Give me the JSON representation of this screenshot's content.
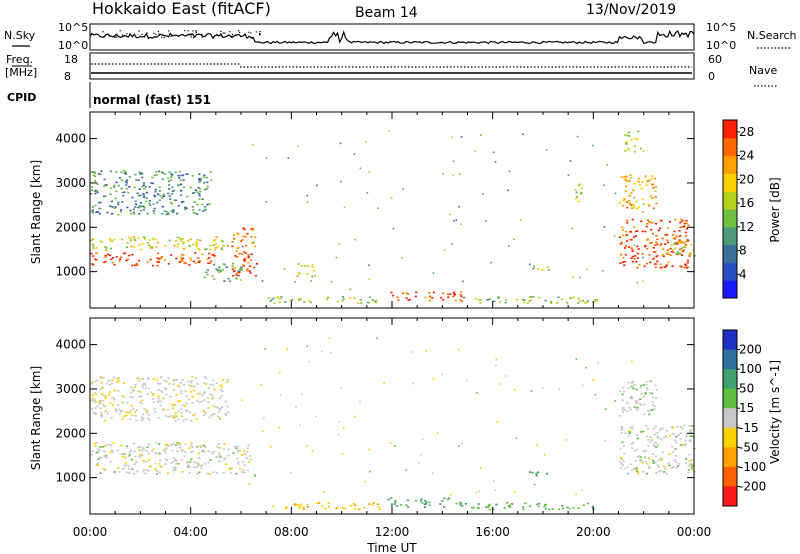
{
  "header": {
    "radar_title": "Hokkaido East (fitACF)",
    "beam": "Beam 14",
    "date": "13/Nov/2019"
  },
  "panels": {
    "nsky_label": "N.Sky",
    "nsky_ticks": [
      "10^5",
      "10^0"
    ],
    "nsearch_label": "N.Search",
    "freq_label_1": "Freq.",
    "freq_label_2": "[MHz]",
    "freq_ticks": [
      "18",
      "8"
    ],
    "nave_label": "Nave",
    "nave_ticks": [
      "60",
      "0"
    ],
    "cpid_label": "CPID",
    "cpid_value": "normal (fast) 151"
  },
  "chart_data": [
    {
      "type": "heatmap",
      "name_printed": "Power",
      "xlabel": "Time UT",
      "ylabel": "Slant Range [km]",
      "x_ticks": [
        "00:00",
        "04:00",
        "08:00",
        "12:00",
        "16:00",
        "20:00",
        "00:00"
      ],
      "xlim_hours": [
        0,
        24
      ],
      "y_ticks": [
        1000,
        2000,
        3000,
        4000
      ],
      "ylim": [
        180,
        4600
      ],
      "colorbar": {
        "label": "Power [dB]",
        "ticks": [
          4,
          8,
          12,
          16,
          20,
          24,
          28
        ],
        "range": [
          0,
          30
        ],
        "colors": [
          "#1a1aff",
          "#2a4fc0",
          "#3a6f98",
          "#4f9a7a",
          "#6fc040",
          "#b8d020",
          "#ffd000",
          "#ffa000",
          "#ff6a00",
          "#ff2000"
        ]
      },
      "regions": [
        {
          "t": [
            0.0,
            4.8
          ],
          "r": [
            2300,
            3300
          ],
          "level": 10
        },
        {
          "t": [
            0.0,
            5.5
          ],
          "r": [
            1500,
            1800
          ],
          "level": 18
        },
        {
          "t": [
            0.0,
            5.0
          ],
          "r": [
            1150,
            1450
          ],
          "level": 27
        },
        {
          "t": [
            5.6,
            6.6
          ],
          "r": [
            900,
            2000
          ],
          "level": 26
        },
        {
          "t": [
            4.5,
            6.0
          ],
          "r": [
            800,
            1200
          ],
          "level": 12
        },
        {
          "t": [
            8.2,
            8.9
          ],
          "r": [
            900,
            1200
          ],
          "level": 20
        },
        {
          "t": [
            7.0,
            11.5
          ],
          "r": [
            300,
            450
          ],
          "level": 14
        },
        {
          "t": [
            11.8,
            14.8
          ],
          "r": [
            350,
            560
          ],
          "level": 27
        },
        {
          "t": [
            14.8,
            20.2
          ],
          "r": [
            300,
            450
          ],
          "level": 14
        },
        {
          "t": [
            17.2,
            18.3
          ],
          "r": [
            1050,
            1150
          ],
          "level": 15
        },
        {
          "t": [
            21.0,
            23.8
          ],
          "r": [
            1100,
            2200
          ],
          "level": 27
        },
        {
          "t": [
            21.0,
            22.5
          ],
          "r": [
            2400,
            3200
          ],
          "level": 22
        },
        {
          "t": [
            22.8,
            24.0
          ],
          "r": [
            1300,
            1700
          ],
          "level": 18
        },
        {
          "t": [
            21.2,
            21.8
          ],
          "r": [
            3700,
            4200
          ],
          "level": 16
        },
        {
          "t": [
            19.2,
            19.6
          ],
          "r": [
            2500,
            3000
          ],
          "level": 16
        }
      ]
    },
    {
      "type": "heatmap",
      "name_printed": "Velocity",
      "xlabel": "Time UT",
      "ylabel": "Slant Range [km]",
      "x_ticks": [
        "00:00",
        "04:00",
        "08:00",
        "12:00",
        "16:00",
        "20:00",
        "00:00"
      ],
      "xlim_hours": [
        0,
        24
      ],
      "y_ticks": [
        1000,
        2000,
        3000,
        4000
      ],
      "ylim": [
        180,
        4600
      ],
      "colorbar": {
        "label": "Velocity [m s^-1]",
        "ticks": [
          "200",
          "100",
          "50",
          "15",
          "-15",
          "-50",
          "-100",
          "-200"
        ],
        "colors": [
          "#2030c0",
          "#3070a0",
          "#40a070",
          "#60c040",
          "#c8c8c8",
          "#ffd000",
          "#ffa000",
          "#ff6000",
          "#ff1a1a"
        ]
      },
      "regions": [
        {
          "t": [
            0.0,
            5.5
          ],
          "r": [
            2300,
            3300
          ],
          "v": -5
        },
        {
          "t": [
            0.0,
            6.5
          ],
          "r": [
            1100,
            1800
          ],
          "v": 0
        },
        {
          "t": [
            7.0,
            11.5
          ],
          "r": [
            300,
            450
          ],
          "v": -40
        },
        {
          "t": [
            11.8,
            14.8
          ],
          "r": [
            350,
            560
          ],
          "v": 60
        },
        {
          "t": [
            14.8,
            20.2
          ],
          "r": [
            300,
            450
          ],
          "v": 40
        },
        {
          "t": [
            17.2,
            18.3
          ],
          "r": [
            1050,
            1150
          ],
          "v": 60
        },
        {
          "t": [
            21.0,
            24.0
          ],
          "r": [
            1100,
            2200
          ],
          "v": 0
        },
        {
          "t": [
            21.0,
            22.5
          ],
          "r": [
            2400,
            3200
          ],
          "v": 5
        }
      ]
    }
  ]
}
